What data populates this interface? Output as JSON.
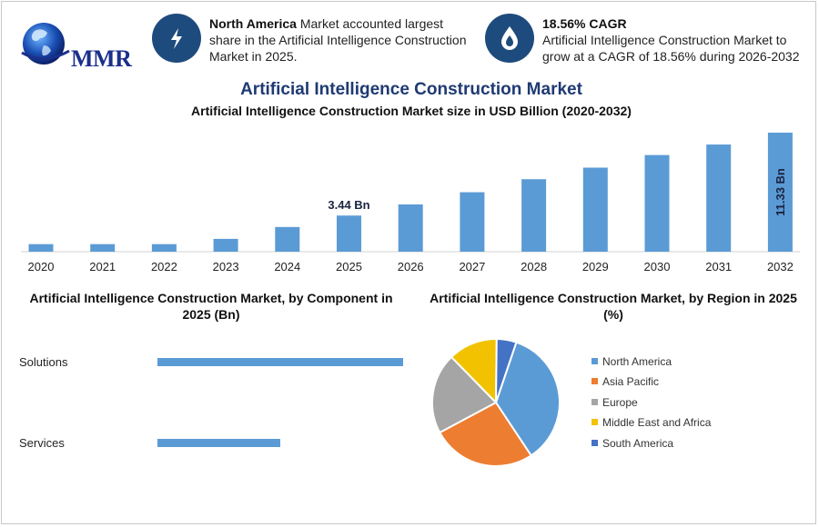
{
  "logo": {
    "text": "MMR"
  },
  "stats": [
    {
      "icon": "lightning-icon",
      "bold": "North America",
      "text": " Market accounted largest share in the Artificial Intelligence Construction Market in 2025."
    },
    {
      "icon": "flame-drop-icon",
      "bold": "18.56% CAGR",
      "text": "Artificial Intelligence Construction Market to grow at a CAGR of 18.56% during 2026-2032"
    }
  ],
  "main_title": "Artificial Intelligence Construction Market",
  "colors": {
    "bar": "#5b9bd5",
    "title": "#1f3a73",
    "icon_bg": "#1e4b7d"
  },
  "chart_data": [
    {
      "type": "bar",
      "title": "Artificial Intelligence Construction Market size in USD Billion (2020-2032)",
      "categories": [
        "2020",
        "2021",
        "2022",
        "2023",
        "2024",
        "2025",
        "2026",
        "2027",
        "2028",
        "2029",
        "2030",
        "2031",
        "2032"
      ],
      "values": [
        0.72,
        0.72,
        0.72,
        1.22,
        2.35,
        3.44,
        4.5,
        5.66,
        6.9,
        8.0,
        9.2,
        10.2,
        11.33
      ],
      "data_labels": [
        {
          "index": 5,
          "text": "3.44 Bn",
          "orientation": "horizontal"
        },
        {
          "index": 12,
          "text": "11.33 Bn",
          "orientation": "vertical"
        }
      ],
      "ylim": [
        0,
        11.33
      ],
      "grid": false
    },
    {
      "type": "bar",
      "orientation": "horizontal",
      "title": "Artificial Intelligence Construction Market, by Component in 2025 (Bn)",
      "categories": [
        "Solutions",
        "Services"
      ],
      "values": [
        2.2,
        1.1
      ],
      "xlim": [
        0,
        2.2
      ]
    },
    {
      "type": "pie",
      "title": "Artificial Intelligence Construction Market, by Region in 2025 (%)",
      "legend_position": "right",
      "slices": [
        {
          "name": "North America",
          "value": 35.5,
          "color": "#5b9bd5"
        },
        {
          "name": "Asia Pacific",
          "value": 26.5,
          "color": "#ed7d31"
        },
        {
          "name": "Europe",
          "value": 20.5,
          "color": "#a5a5a5"
        },
        {
          "name": "Middle East and Africa",
          "value": 12.5,
          "color": "#f2c200"
        },
        {
          "name": "South America",
          "value": 5.0,
          "color": "#4472c4"
        }
      ]
    }
  ]
}
